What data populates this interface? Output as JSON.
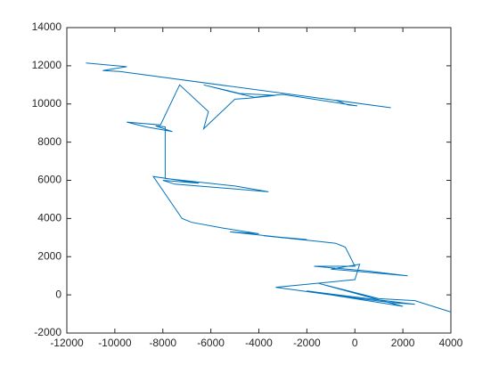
{
  "chart_data": {
    "type": "line",
    "x": [
      -11200,
      -9500,
      -10500,
      -9800,
      1500,
      -800,
      -300,
      100,
      -1200,
      -3000,
      -4200,
      -5200,
      -6300,
      -4800,
      -3300,
      -4400,
      -5000,
      -6300,
      -6100,
      -7300,
      -8100,
      -9500,
      -8700,
      -7600,
      -8300,
      -7900,
      -7900,
      -6800,
      -5000,
      -3600,
      -5500,
      -7500,
      -8000,
      -6500,
      -8400,
      -7200,
      -6800,
      -5500,
      -4000,
      -5200,
      -3000,
      -2000,
      -3800,
      -1500,
      -800,
      -400,
      0,
      -1700,
      500,
      2200,
      -1000,
      200,
      0,
      -3300,
      -1000,
      1500,
      2500,
      -2000,
      -500,
      2000,
      -1500,
      1000,
      2500,
      4000
    ],
    "series": [
      {
        "color": "#0072bd",
        "values": [
          12150,
          11950,
          11750,
          11700,
          9800,
          10200,
          9950,
          9900,
          10150,
          10500,
          10350,
          10650,
          11000,
          10550,
          10450,
          10300,
          10250,
          8700,
          9600,
          11000,
          8900,
          9050,
          8800,
          8550,
          8850,
          8800,
          6100,
          5950,
          5700,
          5400,
          5600,
          5800,
          6000,
          5850,
          6200,
          4000,
          3800,
          3500,
          3200,
          3300,
          3000,
          2900,
          3100,
          2800,
          2700,
          2500,
          1500,
          1500,
          1250,
          1000,
          1350,
          1600,
          800,
          400,
          0,
          -400,
          -500,
          200,
          -100,
          -600,
          600,
          -200,
          -300,
          -900
        ]
      }
    ],
    "xlim": [
      -12000,
      4000
    ],
    "ylim": [
      -2000,
      14000
    ],
    "xticks": [
      -12000,
      -10000,
      -8000,
      -6000,
      -4000,
      -2000,
      0,
      2000,
      4000
    ],
    "yticks": [
      -2000,
      0,
      2000,
      4000,
      6000,
      8000,
      10000,
      12000,
      14000
    ],
    "grid": false
  }
}
